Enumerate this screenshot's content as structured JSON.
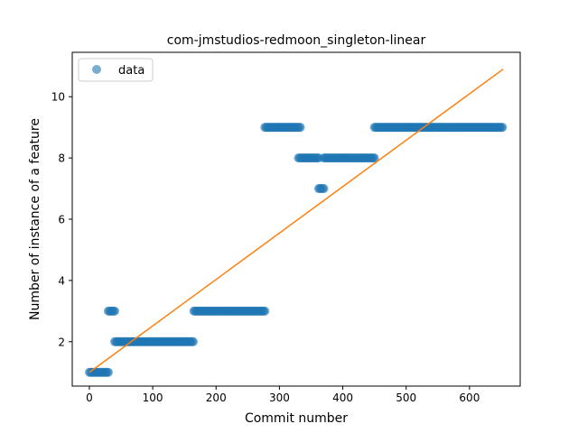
{
  "chart_data": {
    "type": "scatter",
    "title": "com-jmstudios-redmoon_singleton-linear",
    "xlabel": "Commit number",
    "ylabel": "Number of instance of a feature",
    "xlim": [
      -27,
      680
    ],
    "ylim": [
      0.55,
      11.45
    ],
    "xticks": [
      0,
      100,
      200,
      300,
      400,
      500,
      600
    ],
    "yticks": [
      2,
      4,
      6,
      8,
      10
    ],
    "grid": false,
    "legend": {
      "placement": "upper-left",
      "entries": [
        "data"
      ]
    },
    "colors": {
      "data": "#1f77b4",
      "fit": "#ff7f0e"
    },
    "series": [
      {
        "name": "data",
        "kind": "points",
        "segments": [
          {
            "x_start": 0,
            "x_end": 30,
            "y": 1
          },
          {
            "x_start": 30,
            "x_end": 40,
            "y": 3
          },
          {
            "x_start": 40,
            "x_end": 165,
            "y": 2
          },
          {
            "x_start": 165,
            "x_end": 277,
            "y": 3
          },
          {
            "x_start": 277,
            "x_end": 333,
            "y": 9
          },
          {
            "x_start": 330,
            "x_end": 362,
            "y": 8
          },
          {
            "x_start": 362,
            "x_end": 370,
            "y": 7
          },
          {
            "x_start": 370,
            "x_end": 450,
            "y": 8
          },
          {
            "x_start": 450,
            "x_end": 653,
            "y": 9
          }
        ]
      },
      {
        "kind": "line",
        "x": [
          0,
          653
        ],
        "y": [
          1.0,
          10.9
        ]
      }
    ]
  }
}
